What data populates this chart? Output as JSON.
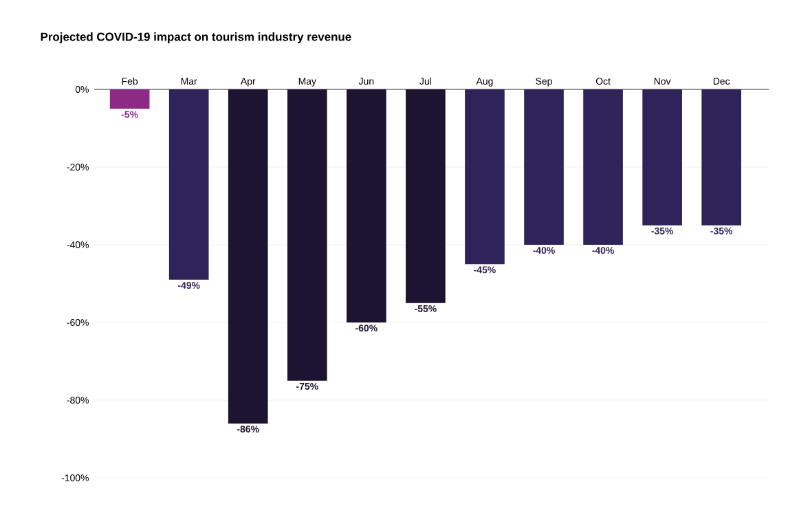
{
  "chart_data": {
    "type": "bar",
    "title": "Projected COVID-19 impact on tourism industry revenue",
    "categories": [
      "Feb",
      "Mar",
      "Apr",
      "May",
      "Jun",
      "Jul",
      "Aug",
      "Sep",
      "Oct",
      "Nov",
      "Dec"
    ],
    "values": [
      -5,
      -49,
      -86,
      -75,
      -60,
      -55,
      -45,
      -40,
      -40,
      -35,
      -35
    ],
    "value_labels": [
      "-5%",
      "-49%",
      "-86%",
      "-75%",
      "-60%",
      "-55%",
      "-45%",
      "-40%",
      "-40%",
      "-35%",
      "-35%"
    ],
    "colors": [
      "#8c2a86",
      "#2e2459",
      "#1c1430",
      "#1c1430",
      "#1c1430",
      "#1c1430",
      "#2e2459",
      "#2e2459",
      "#2e2459",
      "#2e2459",
      "#2e2459"
    ],
    "ylim": [
      -100,
      0
    ],
    "yticks": [
      {
        "value": 0,
        "label": "0%"
      },
      {
        "value": -20,
        "label": "-20%"
      },
      {
        "value": -40,
        "label": "-40%"
      },
      {
        "value": -60,
        "label": "-60%"
      },
      {
        "value": -80,
        "label": "-80%"
      },
      {
        "value": -100,
        "label": "-100%"
      }
    ],
    "grid": "y"
  }
}
